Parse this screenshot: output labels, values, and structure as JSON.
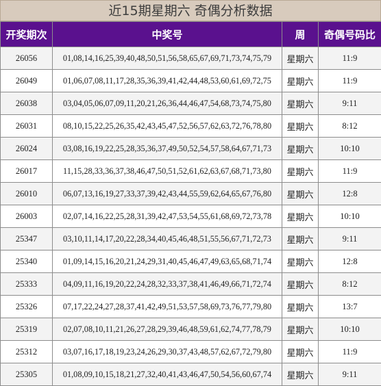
{
  "title": "近15期星期六 奇偶分析数据",
  "headers": {
    "issue": "开奖期次",
    "numbers": "中奖号",
    "weekday": "周",
    "ratio": "奇偶号码比"
  },
  "rows": [
    {
      "issue": "26056",
      "numbers": "01,08,14,16,25,39,40,48,50,51,56,58,65,67,69,71,73,74,75,79",
      "weekday": "星期六",
      "ratio": "11:9"
    },
    {
      "issue": "26049",
      "numbers": "01,06,07,08,11,17,28,35,36,39,41,42,44,48,53,60,61,69,72,75",
      "weekday": "星期六",
      "ratio": "11:9"
    },
    {
      "issue": "26038",
      "numbers": "03,04,05,06,07,09,11,20,21,26,36,44,46,47,54,68,73,74,75,80",
      "weekday": "星期六",
      "ratio": "9:11"
    },
    {
      "issue": "26031",
      "numbers": "08,10,15,22,25,26,35,42,43,45,47,52,56,57,62,63,72,76,78,80",
      "weekday": "星期六",
      "ratio": "8:12"
    },
    {
      "issue": "26024",
      "numbers": "03,08,16,19,22,25,28,35,36,37,49,50,52,54,57,58,64,67,71,73",
      "weekday": "星期六",
      "ratio": "10:10"
    },
    {
      "issue": "26017",
      "numbers": "11,15,28,33,36,37,38,46,47,50,51,52,61,62,63,67,68,71,73,80",
      "weekday": "星期六",
      "ratio": "11:9"
    },
    {
      "issue": "26010",
      "numbers": "06,07,13,16,19,27,33,37,39,42,43,44,55,59,62,64,65,67,76,80",
      "weekday": "星期六",
      "ratio": "12:8"
    },
    {
      "issue": "26003",
      "numbers": "02,07,14,16,22,25,28,31,39,42,47,53,54,55,61,68,69,72,73,78",
      "weekday": "星期六",
      "ratio": "10:10"
    },
    {
      "issue": "25347",
      "numbers": "03,10,11,14,17,20,22,28,34,40,45,46,48,51,55,56,67,71,72,73",
      "weekday": "星期六",
      "ratio": "9:11"
    },
    {
      "issue": "25340",
      "numbers": "01,09,14,15,16,20,21,24,29,31,40,45,46,47,49,63,65,68,71,74",
      "weekday": "星期六",
      "ratio": "12:8"
    },
    {
      "issue": "25333",
      "numbers": "04,09,11,16,19,20,22,24,28,32,33,37,38,41,46,49,66,71,72,74",
      "weekday": "星期六",
      "ratio": "8:12"
    },
    {
      "issue": "25326",
      "numbers": "07,17,22,24,27,28,37,41,42,49,51,53,57,58,69,73,76,77,79,80",
      "weekday": "星期六",
      "ratio": "13:7"
    },
    {
      "issue": "25319",
      "numbers": "02,07,08,10,11,21,26,27,28,29,39,46,48,59,61,62,74,77,78,79",
      "weekday": "星期六",
      "ratio": "10:10"
    },
    {
      "issue": "25312",
      "numbers": "03,07,16,17,18,19,23,24,26,29,30,37,43,48,57,62,67,72,79,80",
      "weekday": "星期六",
      "ratio": "11:9"
    },
    {
      "issue": "25305",
      "numbers": "01,08,09,10,15,18,21,27,32,40,41,43,46,47,50,54,56,60,67,74",
      "weekday": "星期六",
      "ratio": "9:11"
    }
  ],
  "colors": {
    "title_bg": "#d8cbbd",
    "header_bg": "#5a118e",
    "header_text": "#ffffff",
    "row_alt_bg": "#f3f3f3"
  }
}
